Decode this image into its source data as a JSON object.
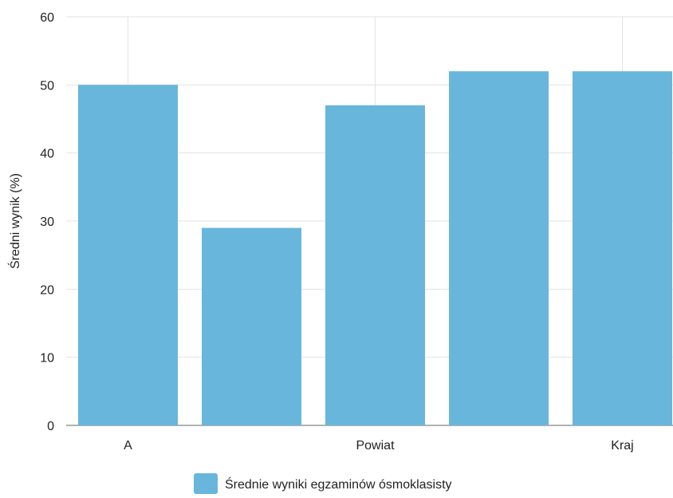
{
  "chart_data": {
    "type": "bar",
    "categories": [
      "A",
      "",
      "Powiat",
      "",
      "Kraj"
    ],
    "values": [
      50,
      29,
      47,
      52,
      52
    ],
    "series": [
      {
        "name": "Średnie wyniki egzaminów ósmoklasisty",
        "values": [
          50,
          29,
          47,
          52,
          52
        ]
      }
    ],
    "title": "",
    "xlabel": "",
    "ylabel": "Średni wynik (%)",
    "ylim": [
      0,
      60
    ],
    "yticks": [
      0,
      10,
      20,
      30,
      40,
      50,
      60
    ],
    "grid": true,
    "legend": "bottom-center",
    "colors": {
      "bar": "#68b6db",
      "grid": "#e3e3e3",
      "axis": "#666666"
    }
  }
}
